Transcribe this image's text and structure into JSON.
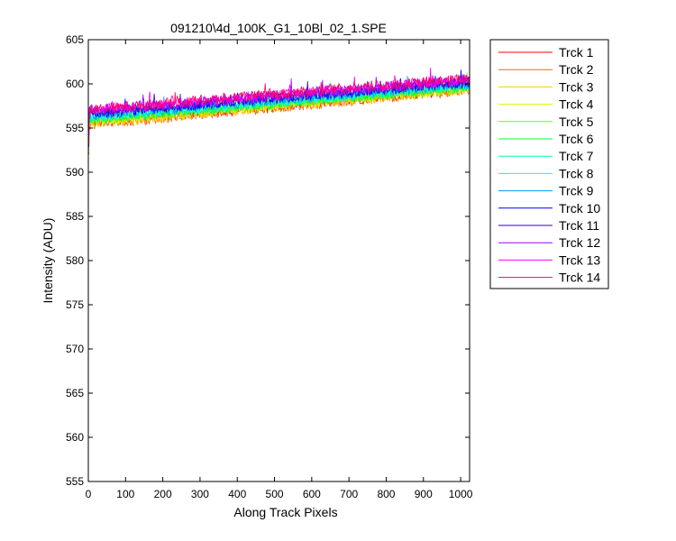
{
  "chart_data": {
    "type": "line",
    "title": "091210\\4d_100K_G1_10Bl_02_1.SPE",
    "xlabel": "Along Track Pixels",
    "ylabel": "Intensity (ADU)",
    "xlim": [
      0,
      1024
    ],
    "ylim": [
      555,
      605
    ],
    "x_ticks": [
      0,
      100,
      200,
      300,
      400,
      500,
      600,
      700,
      800,
      900,
      1000
    ],
    "y_ticks": [
      555,
      560,
      565,
      570,
      575,
      580,
      585,
      590,
      595,
      600,
      605
    ],
    "grid": false,
    "legend_position": "outside-right",
    "x_range": [
      1,
      1024
    ],
    "noise_amplitude": 0.6,
    "series": [
      {
        "name": "Trck 1",
        "color": "#ff0000",
        "start": 595.6,
        "end": 599.4
      },
      {
        "name": "Trck 2",
        "color": "#ff6600",
        "start": 595.4,
        "end": 599.3
      },
      {
        "name": "Trck 3",
        "color": "#ffcc00",
        "start": 595.5,
        "end": 599.4
      },
      {
        "name": "Trck 4",
        "color": "#ccff00",
        "start": 595.7,
        "end": 599.5
      },
      {
        "name": "Trck 5",
        "color": "#66ff00",
        "start": 595.9,
        "end": 599.6
      },
      {
        "name": "Trck 6",
        "color": "#00ff33",
        "start": 596.0,
        "end": 599.7
      },
      {
        "name": "Trck 7",
        "color": "#00ff99",
        "start": 596.1,
        "end": 599.8
      },
      {
        "name": "Trck 8",
        "color": "#00ffff",
        "start": 596.2,
        "end": 599.9
      },
      {
        "name": "Trck 9",
        "color": "#0099ff",
        "start": 596.4,
        "end": 600.0
      },
      {
        "name": "Trck 10",
        "color": "#0000ff",
        "start": 596.6,
        "end": 600.2
      },
      {
        "name": "Trck 11",
        "color": "#3300cc",
        "start": 596.8,
        "end": 600.3
      },
      {
        "name": "Trck 12",
        "color": "#9900ff",
        "start": 596.9,
        "end": 600.4
      },
      {
        "name": "Trck 13",
        "color": "#ff00ff",
        "start": 597.0,
        "end": 600.5
      },
      {
        "name": "Trck 14",
        "color": "#ff0066",
        "start": 597.1,
        "end": 600.6
      }
    ]
  }
}
